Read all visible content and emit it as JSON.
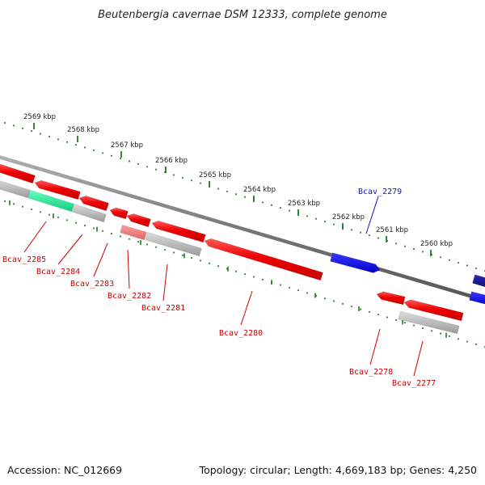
{
  "title": "Beutenbergia cavernae DSM 12333, complete genome",
  "footer": {
    "accession": "Accession: NC_012669",
    "summary": "Topology: circular; Length: 4,669,183 bp; Genes: 4,250"
  },
  "scale": {
    "color": "#1e7a1e",
    "ticks": [
      "2569 kbp",
      "2568 kbp",
      "2567 kbp",
      "2566 kbp",
      "2565 kbp",
      "2564 kbp",
      "2563 kbp",
      "2562 kbp",
      "2561 kbp",
      "2560 kbp"
    ]
  },
  "colors": {
    "forward": "#1010ee",
    "forward_dark": "#0a0a88",
    "reverse": "#ee0000",
    "reverse_light": "#ee7777",
    "rna": "#22ee99",
    "pseudo": "#aaaaaa",
    "backbone": "#777777",
    "label_forward": "#1010cc",
    "label_reverse": "#cc0000"
  },
  "labels": [
    {
      "text": "Bcav_2285",
      "strand": "reverse"
    },
    {
      "text": "Bcav_2284",
      "strand": "reverse"
    },
    {
      "text": "Bcav_2283",
      "strand": "reverse"
    },
    {
      "text": "Bcav_2282",
      "strand": "reverse"
    },
    {
      "text": "Bcav_2281",
      "strand": "reverse"
    },
    {
      "text": "Bcav_2280",
      "strand": "reverse"
    },
    {
      "text": "Bcav_2279",
      "strand": "forward"
    },
    {
      "text": "Bcav_2278",
      "strand": "reverse"
    },
    {
      "text": "Bcav_2277",
      "strand": "reverse"
    }
  ]
}
